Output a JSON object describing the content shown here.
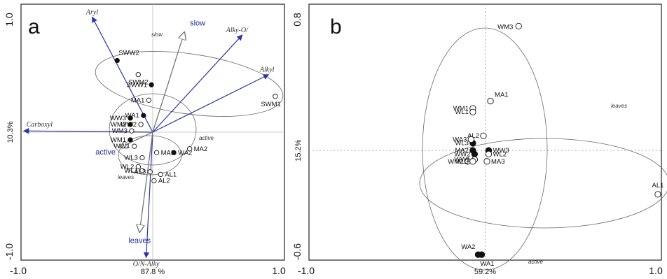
{
  "colors": {
    "variable_arrow": "#2a35a6",
    "supplementary_arrow": "#777777",
    "frame": "#222222"
  },
  "chart_data": [
    {
      "type": "scatter",
      "panel": "a",
      "xlabel": "87.8 %",
      "ylabel": "10.3%",
      "xlim": [
        -1.0,
        1.0
      ],
      "ylim": [
        -1.0,
        1.0
      ],
      "x_tick_labels": [
        "-1.0",
        "1.0"
      ],
      "y_tick_labels": [
        "1.0",
        "-1.0"
      ],
      "grid": false,
      "series": [
        {
          "name": "samples",
          "points": [
            {
              "label": "SWW2",
              "x": -0.27,
              "y": 0.56,
              "filled": true
            },
            {
              "label": "SWM2",
              "x": -0.11,
              "y": 0.45,
              "filled": false
            },
            {
              "label": "SWW1",
              "x": -0.01,
              "y": 0.37,
              "filled": true
            },
            {
              "label": "MA1",
              "x": -0.03,
              "y": 0.25,
              "filled": false
            },
            {
              "label": "WA1",
              "x": -0.07,
              "y": 0.13,
              "filled": true
            },
            {
              "label": "WW3",
              "x": -0.17,
              "y": 0.11,
              "filled": true
            },
            {
              "label": "WM2",
              "x": -0.17,
              "y": 0.06,
              "filled": true
            },
            {
              "label": "WW2",
              "x": -0.09,
              "y": 0.06,
              "filled": false
            },
            {
              "label": "WM3",
              "x": -0.16,
              "y": 0.01,
              "filled": false
            },
            {
              "label": "WM1",
              "x": -0.17,
              "y": -0.06,
              "filled": true
            },
            {
              "label": "WW1",
              "x": -0.14,
              "y": -0.11,
              "filled": false
            },
            {
              "label": "WA2",
              "x": 0.16,
              "y": -0.16,
              "filled": true
            },
            {
              "label": "MA3",
              "x": 0.03,
              "y": -0.16,
              "filled": false
            },
            {
              "label": "MA2",
              "x": 0.28,
              "y": -0.13,
              "filled": false
            },
            {
              "label": "WL3",
              "x": -0.08,
              "y": -0.2,
              "filled": false
            },
            {
              "label": "WL2",
              "x": -0.11,
              "y": -0.27,
              "filled": false
            },
            {
              "label": "WL1",
              "x": -0.08,
              "y": -0.3,
              "filled": false
            },
            {
              "label": "AL3",
              "x": -0.02,
              "y": -0.31,
              "filled": false
            },
            {
              "label": "AL1",
              "x": 0.06,
              "y": -0.33,
              "filled": false
            },
            {
              "label": "AL2",
              "x": 0.01,
              "y": -0.38,
              "filled": false
            },
            {
              "label": "SWM1",
              "x": 0.93,
              "y": 0.28,
              "filled": false
            }
          ]
        }
      ],
      "variables": [
        {
          "label": "Aryl",
          "x": -0.46,
          "y": 0.9
        },
        {
          "label": "Alky-O/",
          "x": 0.68,
          "y": 0.76
        },
        {
          "label": "Alkyl",
          "x": 0.88,
          "y": 0.45
        },
        {
          "label": "Carboxyl",
          "x": -0.98,
          "y": 0.01
        },
        {
          "label": "O/N-Alky",
          "x": -0.05,
          "y": -0.98
        }
      ],
      "supplementary": [
        {
          "label": "slow",
          "x": 0.24,
          "y": 0.78
        },
        {
          "label": "active",
          "x": -0.25,
          "y": -0.12
        },
        {
          "label": "leaves",
          "x": -0.1,
          "y": -0.78
        }
      ],
      "ellipse_labels": [
        "slow",
        "active",
        "leaves"
      ]
    },
    {
      "type": "scatter",
      "panel": "b",
      "xlabel": "59.2%",
      "ylabel": "15.2%",
      "xlim": [
        -1.0,
        1.0
      ],
      "ylim": [
        -0.6,
        0.8
      ],
      "x_tick_labels": [
        "-1.0",
        "1.0"
      ],
      "y_tick_labels": [
        "0.8",
        "-0.6"
      ],
      "grid": false,
      "series": [
        {
          "name": "samples",
          "points": [
            {
              "label": "WM3",
              "x": 0.19,
              "y": 0.68,
              "filled": false
            },
            {
              "label": "MA1",
              "x": 0.03,
              "y": 0.27,
              "filled": false
            },
            {
              "label": "WM1",
              "x": -0.07,
              "y": 0.23,
              "filled": false
            },
            {
              "label": "WL1",
              "x": -0.07,
              "y": 0.21,
              "filled": false
            },
            {
              "label": "AL2",
              "x": -0.01,
              "y": 0.08,
              "filled": false
            },
            {
              "label": "WL3",
              "x": -0.07,
              "y": 0.04,
              "filled": true
            },
            {
              "label": "WW3",
              "x": 0.02,
              "y": 0.0,
              "filled": true
            },
            {
              "label": "MA2",
              "x": -0.07,
              "y": 0.0,
              "filled": true
            },
            {
              "label": "WW2",
              "x": -0.06,
              "y": -0.02,
              "filled": true
            },
            {
              "label": "WA3",
              "x": -0.08,
              "y": 0.06,
              "filled": false
            },
            {
              "label": "WM2",
              "x": -0.1,
              "y": -0.06,
              "filled": false
            },
            {
              "label": "WL2",
              "x": 0.02,
              "y": -0.02,
              "filled": false
            },
            {
              "label": "WW1",
              "x": -0.06,
              "y": -0.05,
              "filled": false
            },
            {
              "label": "MA3",
              "x": 0.01,
              "y": -0.06,
              "filled": false
            },
            {
              "label": "AL3",
              "x": -0.07,
              "y": -0.06,
              "filled": false
            },
            {
              "label": "AL1",
              "x": 0.98,
              "y": -0.24,
              "filled": false
            },
            {
              "label": "WA2",
              "x": -0.04,
              "y": -0.57,
              "filled": true
            },
            {
              "label": "WA1",
              "x": -0.02,
              "y": -0.57,
              "filled": true
            }
          ]
        }
      ],
      "ellipse_labels": [
        "leaves",
        "active"
      ]
    }
  ]
}
